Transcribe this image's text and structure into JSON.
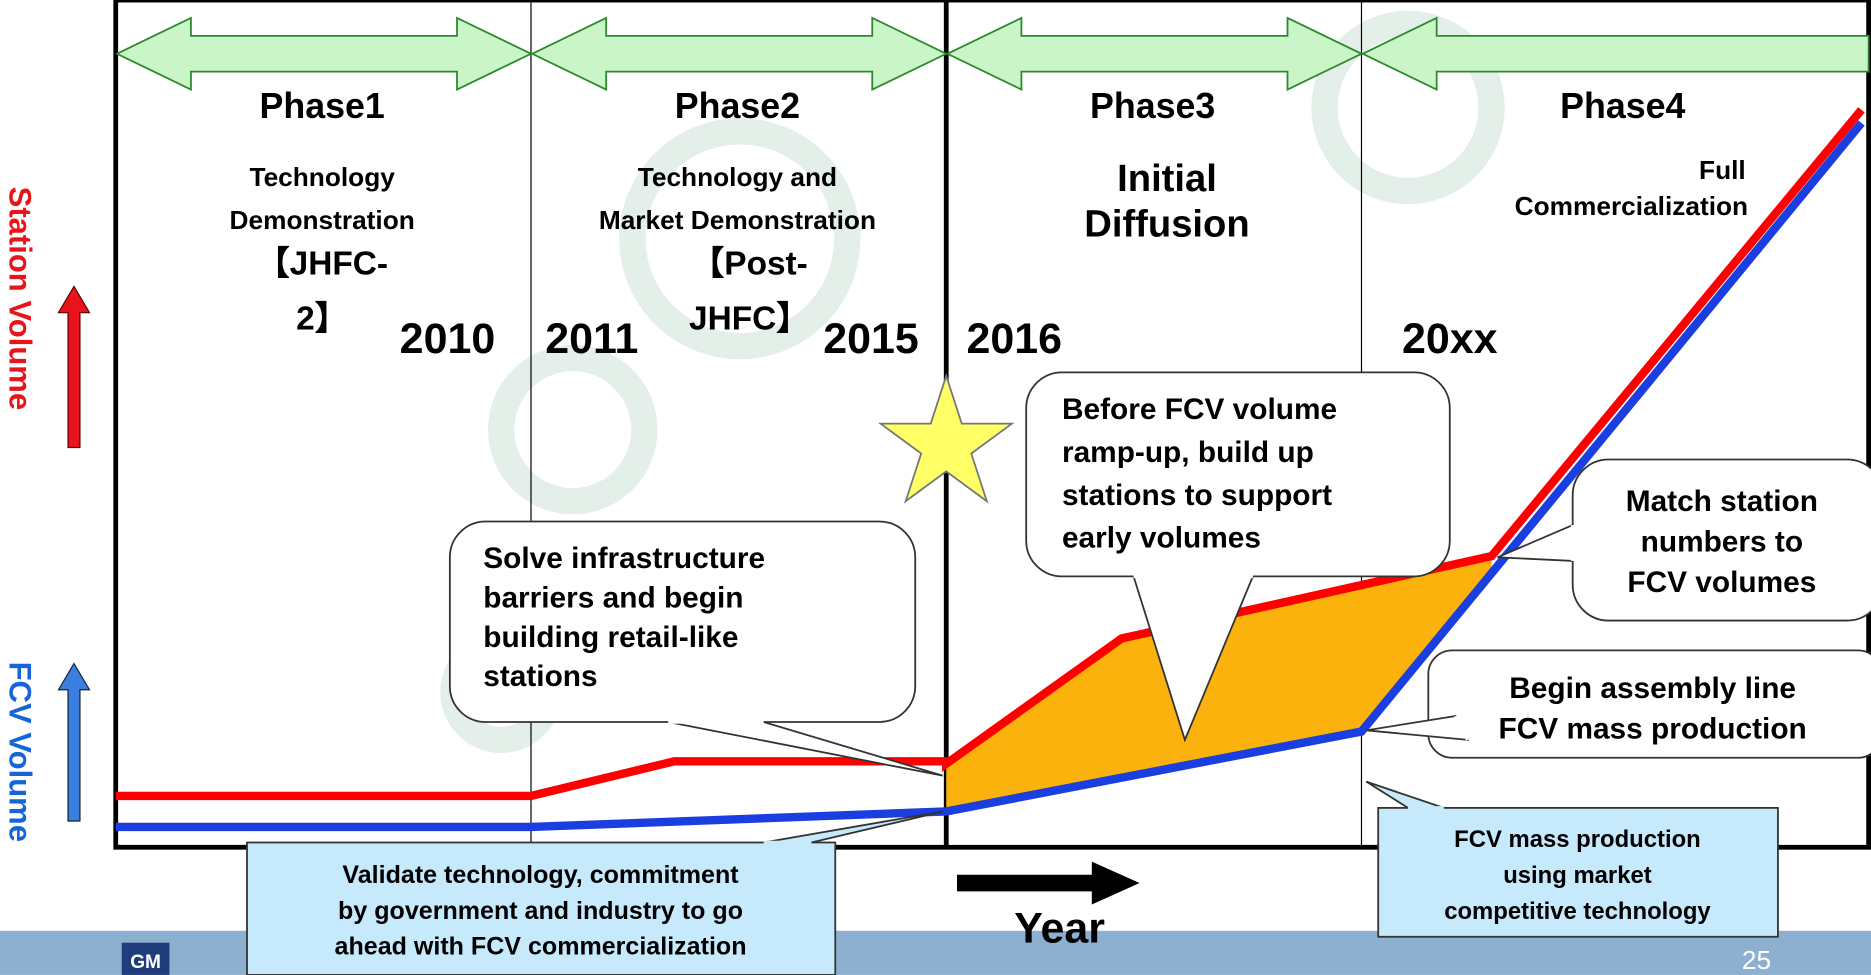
{
  "left_labels": {
    "station": "Station Volume",
    "fcv": "FCV Volume"
  },
  "phases": [
    {
      "title": "Phase1",
      "desc": [
        "Technology",
        "Demonstration",
        "【JHFC-",
        "2】"
      ]
    },
    {
      "title": "Phase2",
      "desc": [
        "Technology and",
        "Market Demonstration",
        "【Post-",
        "JHFC】"
      ]
    },
    {
      "title": "Phase3",
      "desc": [
        "Initial",
        "Diffusion"
      ]
    },
    {
      "title": "Phase4",
      "desc": [
        "Full",
        "Commercialization"
      ]
    }
  ],
  "years": [
    "2010",
    "2011",
    "2015",
    "2016",
    "20xx"
  ],
  "callouts": [
    [
      "Solve infrastructure",
      "barriers and begin",
      "building retail-like",
      "stations"
    ],
    [
      "Before FCV volume",
      "ramp-up, build up",
      "stations to support",
      "early volumes"
    ],
    [
      "Match station",
      "numbers to",
      "FCV volumes"
    ],
    [
      "Begin assembly line",
      "FCV mass production"
    ],
    [
      "Validate technology, commitment",
      "by government and industry to go",
      "ahead with FCV commercialization"
    ],
    [
      "FCV mass production",
      "using market",
      "competitive technology"
    ]
  ],
  "x_axis_label": "Year",
  "logo": "GM",
  "page_number": "25"
}
